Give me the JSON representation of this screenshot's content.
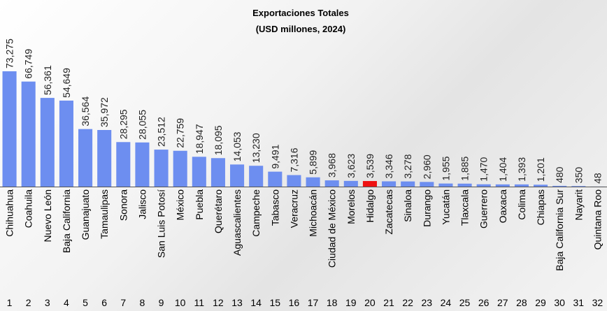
{
  "chart_data": {
    "type": "bar",
    "title": "Exportaciones Totales",
    "subtitle": "(USD millones, 2024)",
    "categories": [
      "Chihuahua",
      "Coahuila",
      "Nuevo León",
      "Baja California",
      "Guanajuato",
      "Tamaulipas",
      "Sonora",
      "Jalisco",
      "San Luis Potosí",
      "México",
      "Puebla",
      "Querétaro",
      "Aguascalientes",
      "Campeche",
      "Tabasco",
      "Veracruz",
      "Michoacán",
      "Ciudad de México",
      "Morelos",
      "Hidalgo",
      "Zacatecas",
      "Sinaloa",
      "Durango",
      "Yucatán",
      "Tlaxcala",
      "Guerrero",
      "Oaxaca",
      "Colima",
      "Chiapas",
      "Baja California Sur",
      "Nayarit",
      "Quintana Roo"
    ],
    "values": [
      73275,
      66749,
      56361,
      54649,
      36564,
      35972,
      28295,
      28055,
      23512,
      22759,
      18947,
      18095,
      14053,
      13230,
      9491,
      7316,
      5899,
      3968,
      3623,
      3539,
      3346,
      3278,
      2960,
      1955,
      1885,
      1470,
      1404,
      1393,
      1201,
      480,
      350,
      48
    ],
    "value_labels": [
      "73,275",
      "66,749",
      "56,361",
      "54,649",
      "36,564",
      "35,972",
      "28,295",
      "28,055",
      "23,512",
      "22,759",
      "18,947",
      "18,095",
      "14,053",
      "13,230",
      "9,491",
      "7,316",
      "5,899",
      "3,968",
      "3,623",
      "3,539",
      "3,346",
      "3,278",
      "2,960",
      "1,955",
      "1,885",
      "1,470",
      "1,404",
      "1,393",
      "1,201",
      "480",
      "350",
      "48"
    ],
    "ranks": [
      "1",
      "2",
      "3",
      "4",
      "5",
      "6",
      "7",
      "8",
      "9",
      "10",
      "11",
      "12",
      "13",
      "14",
      "15",
      "16",
      "17",
      "18",
      "19",
      "20",
      "21",
      "22",
      "23",
      "24",
      "25",
      "26",
      "27",
      "28",
      "29",
      "30",
      "31",
      "32"
    ],
    "highlight_category": "Hidalgo",
    "xlabel": "",
    "ylabel": "",
    "ylim": [
      0,
      73275
    ],
    "grid": false,
    "legend": "none",
    "colors": {
      "bar": "#6d8ef0",
      "highlight": "#ee1111",
      "axis": "#555555"
    }
  }
}
